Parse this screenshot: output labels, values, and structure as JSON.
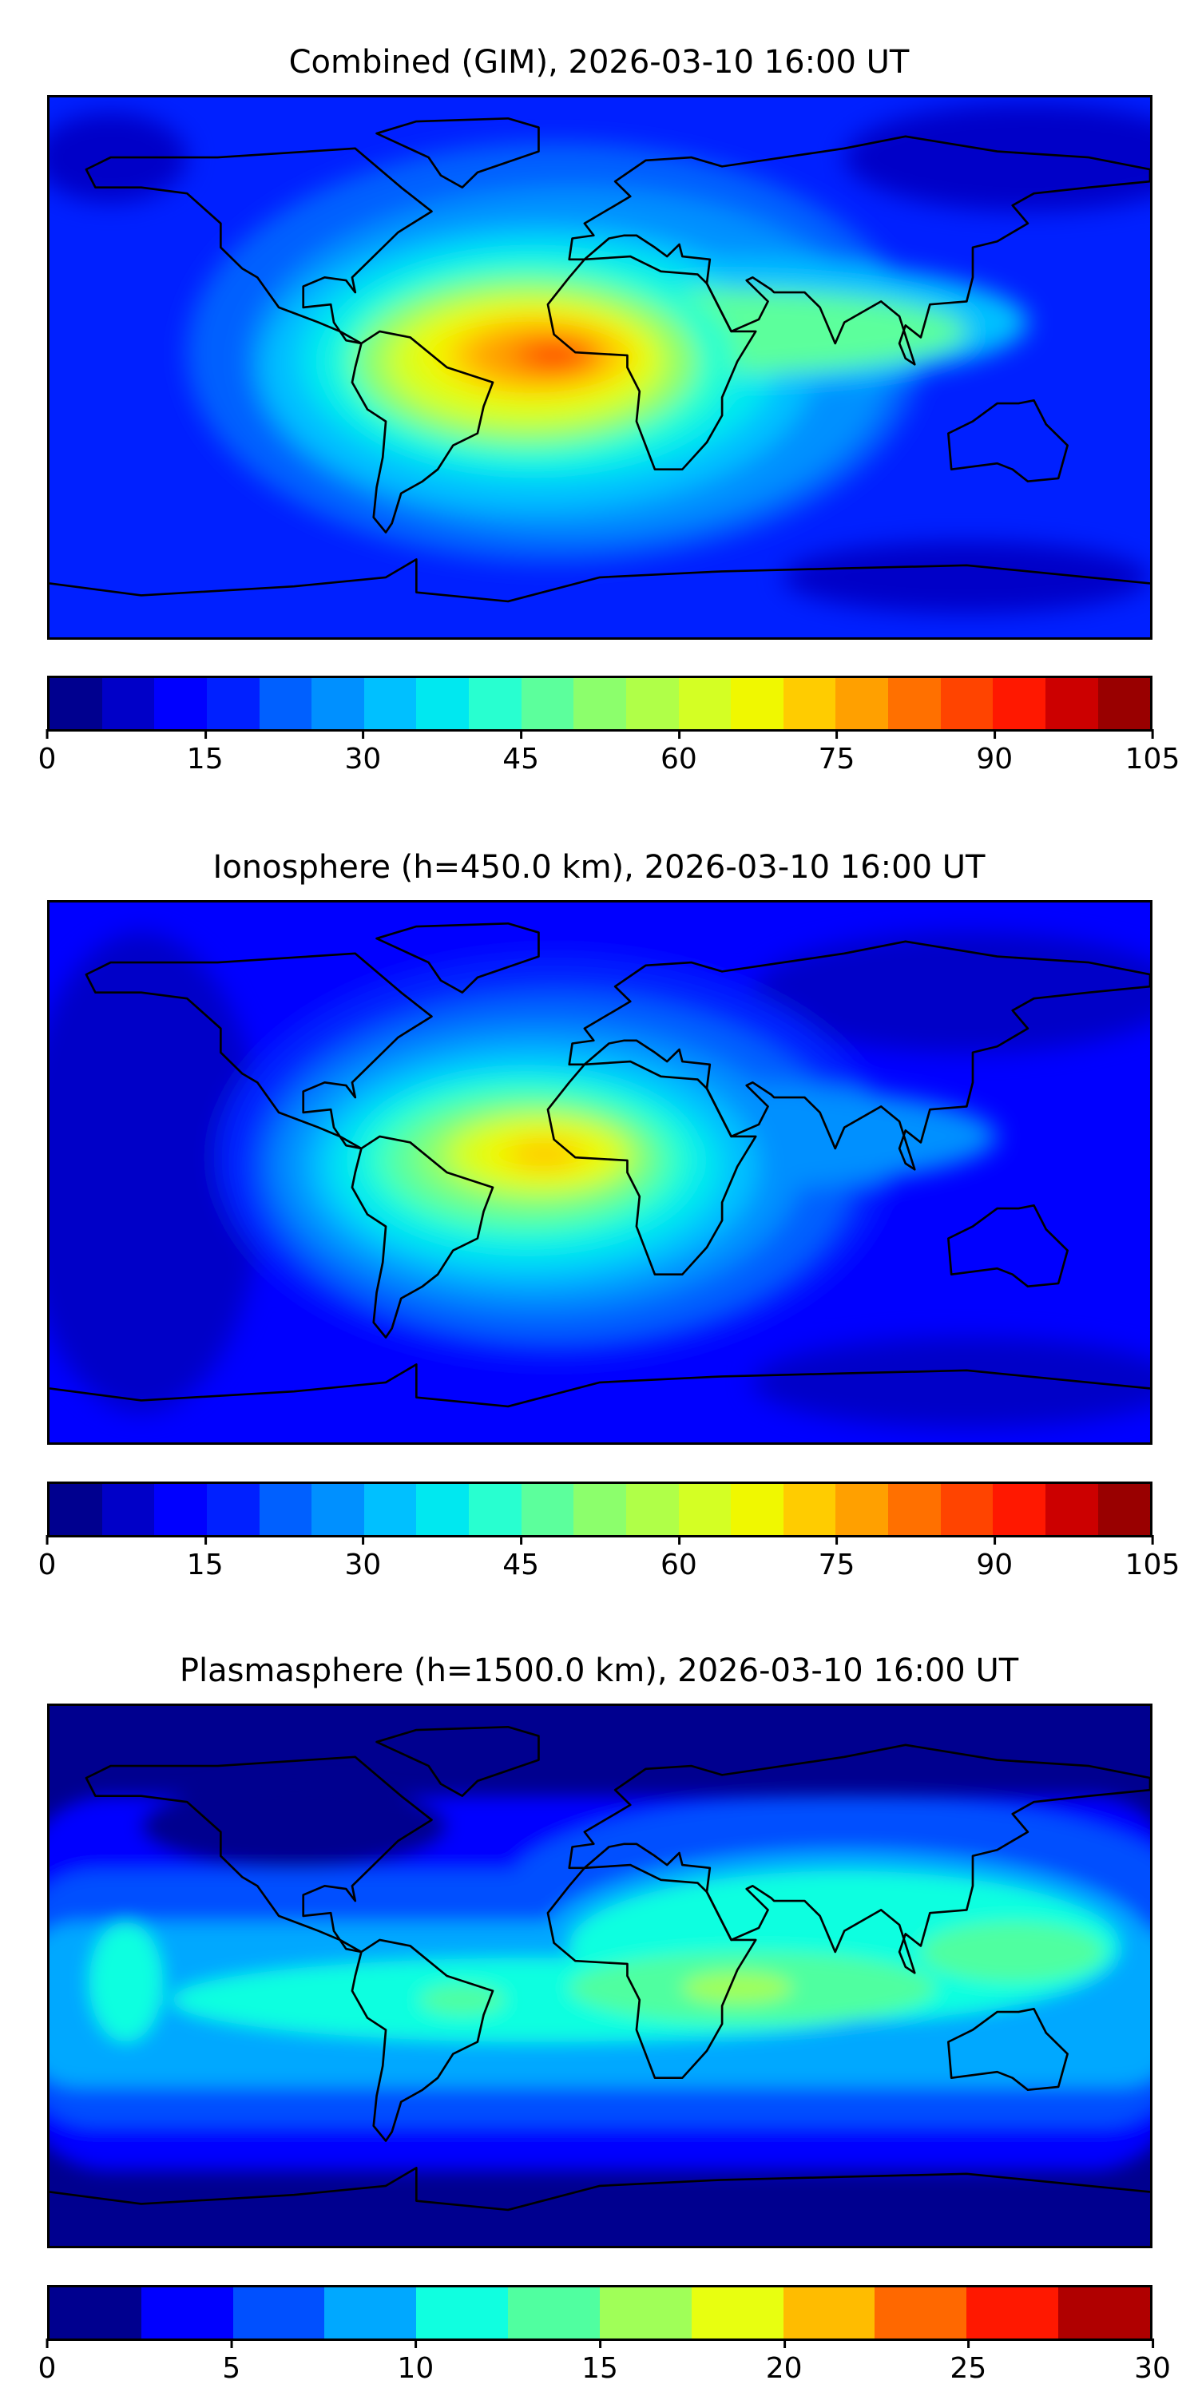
{
  "panels": [
    {
      "title": "Combined (GIM), 2026-03-10 16:00 UT",
      "colorbar": {
        "ticks": [
          "0",
          "15",
          "30",
          "45",
          "60",
          "75",
          "90",
          "105"
        ],
        "range": [
          0,
          105
        ],
        "colors": [
          "#00008f",
          "#0000c8",
          "#0000ff",
          "#0020ff",
          "#0060ff",
          "#0090ff",
          "#00c0ff",
          "#00e8f0",
          "#28ffd0",
          "#5cff9c",
          "#8cff6c",
          "#b0ff48",
          "#d4ff24",
          "#f0f800",
          "#ffcc00",
          "#ffa000",
          "#ff7000",
          "#ff4400",
          "#ff1800",
          "#cc0000",
          "#990000"
        ]
      }
    },
    {
      "title": "Ionosphere  (h=450.0 km), 2026-03-10 16:00 UT",
      "colorbar": {
        "ticks": [
          "0",
          "15",
          "30",
          "45",
          "60",
          "75",
          "90",
          "105"
        ],
        "range": [
          0,
          105
        ],
        "colors": [
          "#00008f",
          "#0000c8",
          "#0000ff",
          "#0020ff",
          "#0060ff",
          "#0090ff",
          "#00c0ff",
          "#00e8f0",
          "#28ffd0",
          "#5cff9c",
          "#8cff6c",
          "#b0ff48",
          "#d4ff24",
          "#f0f800",
          "#ffcc00",
          "#ffa000",
          "#ff7000",
          "#ff4400",
          "#ff1800",
          "#cc0000",
          "#990000"
        ]
      }
    },
    {
      "title": "Plasmasphere (h=1500.0 km), 2026-03-10 16:00 UT",
      "colorbar": {
        "ticks": [
          "0",
          "5",
          "10",
          "15",
          "20",
          "25",
          "30"
        ],
        "range": [
          0,
          30
        ],
        "colors": [
          "#00008f",
          "#0000ff",
          "#0050ff",
          "#00a8ff",
          "#10ffe0",
          "#50ffa0",
          "#a0ff58",
          "#e8ff10",
          "#ffbc00",
          "#ff6800",
          "#ff1800",
          "#b00000"
        ]
      }
    }
  ]
}
